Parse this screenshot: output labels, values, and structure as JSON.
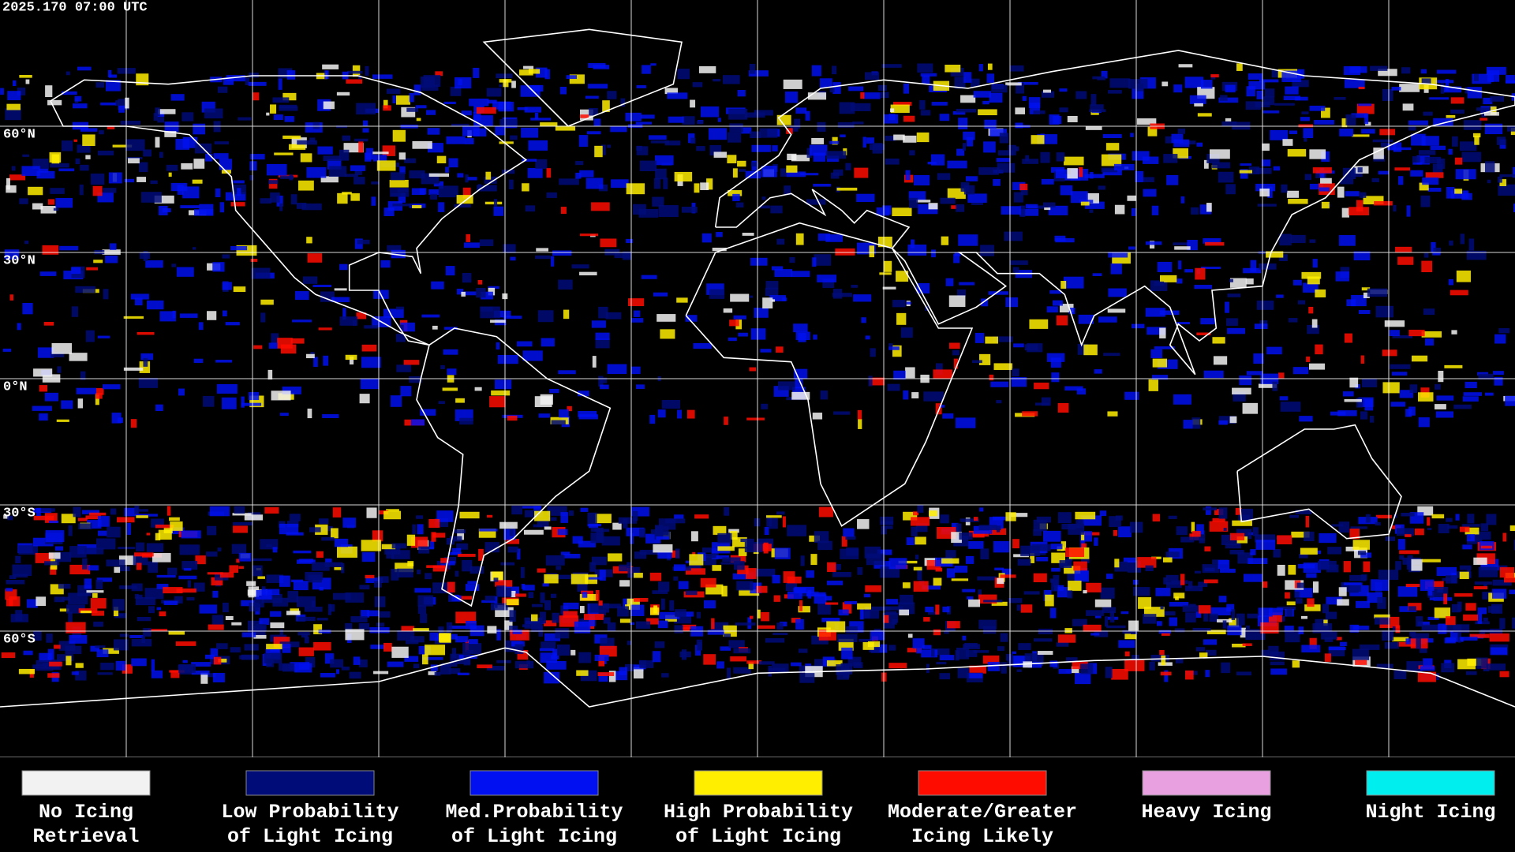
{
  "header": {
    "timestamp": "2025.170 07:00 UTC"
  },
  "latitude_labels": [
    "60°N",
    "30°N",
    "0°N",
    "30°S",
    "60°S"
  ],
  "legend": [
    {
      "lines": [
        "No Icing",
        "Retrieval"
      ],
      "color": "#f2f2f2"
    },
    {
      "lines": [
        "Low Probability",
        "of Light Icing"
      ],
      "color": "#000c78"
    },
    {
      "lines": [
        "Med.Probability",
        "of Light Icing"
      ],
      "color": "#0010f0"
    },
    {
      "lines": [
        "High Probability",
        "of Light Icing"
      ],
      "color": "#ffee00"
    },
    {
      "lines": [
        "Moderate/Greater",
        "Icing Likely"
      ],
      "color": "#ff0c00"
    },
    {
      "lines": [
        "Heavy Icing"
      ],
      "color": "#e8a0e0"
    },
    {
      "lines": [
        "Night Icing"
      ],
      "color": "#00eeee"
    }
  ]
}
